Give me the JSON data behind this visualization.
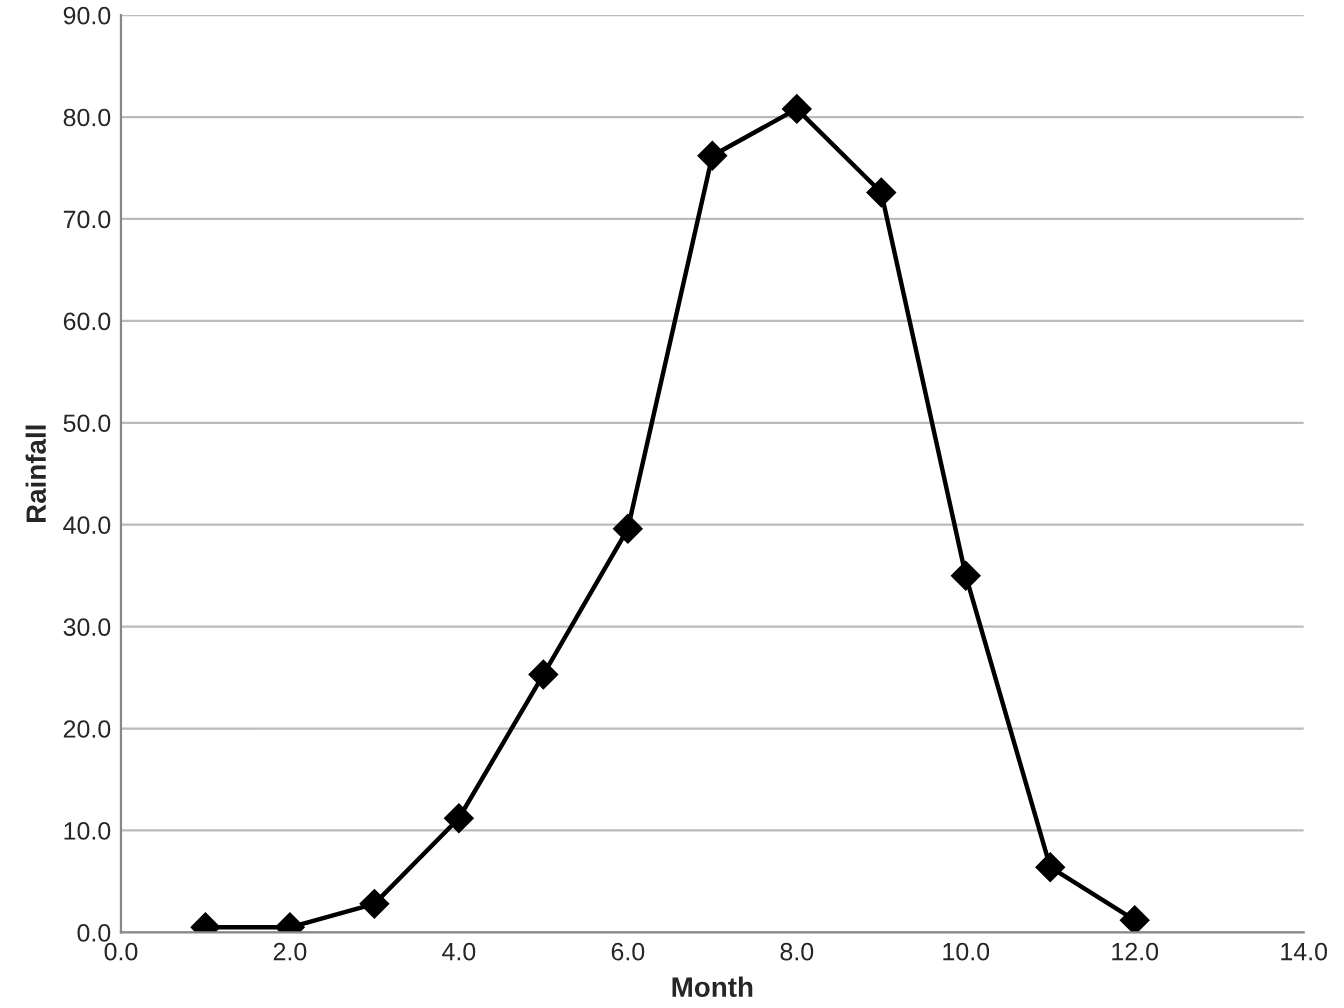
{
  "chart_data": {
    "type": "line",
    "xlabel": "Month",
    "ylabel": "Rainfall",
    "x": [
      1,
      2,
      3,
      4,
      5,
      6,
      7,
      8,
      9,
      10,
      11,
      12
    ],
    "series": [
      {
        "color": "#000000",
        "values": [
          0.5,
          0.5,
          2.8,
          11.2,
          25.3,
          39.6,
          76.2,
          80.8,
          72.6,
          35.0,
          6.4,
          1.2
        ]
      }
    ],
    "xlim": [
      0,
      14
    ],
    "ylim": [
      0,
      90
    ],
    "xticks": [
      {
        "value": 0,
        "label": "0.0"
      },
      {
        "value": 2,
        "label": "2.0"
      },
      {
        "value": 4,
        "label": "4.0"
      },
      {
        "value": 6,
        "label": "6.0"
      },
      {
        "value": 8,
        "label": "8.0"
      },
      {
        "value": 10,
        "label": "10.0"
      },
      {
        "value": 12,
        "label": "12.0"
      },
      {
        "value": 14,
        "label": "14.0"
      }
    ],
    "yticks": [
      {
        "value": 0,
        "label": "0.0"
      },
      {
        "value": 10,
        "label": "10.0"
      },
      {
        "value": 20,
        "label": "20.0"
      },
      {
        "value": 30,
        "label": "30.0"
      },
      {
        "value": 40,
        "label": "40.0"
      },
      {
        "value": 50,
        "label": "50.0"
      },
      {
        "value": 60,
        "label": "60.0"
      },
      {
        "value": 70,
        "label": "70.0"
      },
      {
        "value": 80,
        "label": "80.0"
      },
      {
        "value": 90,
        "label": "90.0"
      }
    ],
    "grid": "y",
    "marker": "diamond",
    "line_style": "solid"
  }
}
